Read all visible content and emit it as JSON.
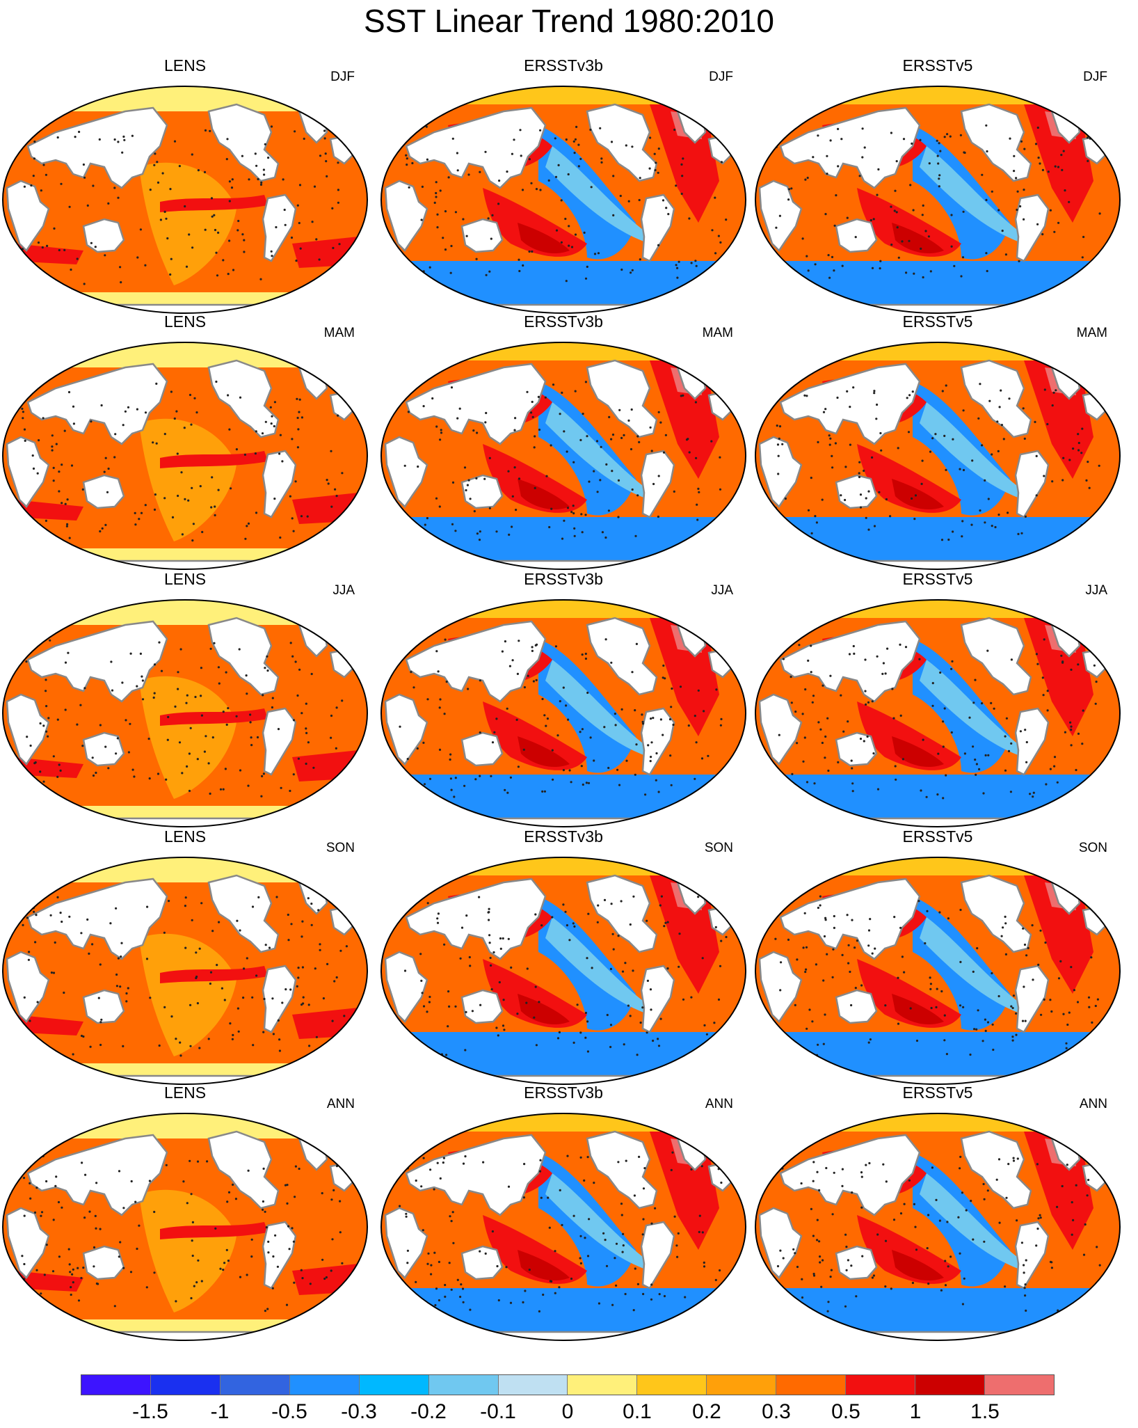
{
  "title": "SST Linear Trend 1980:2010",
  "columns": [
    "LENS",
    "ERSSTv3b",
    "ERSSTv5"
  ],
  "seasons": [
    "DJF",
    "MAM",
    "JJA",
    "SON",
    "ANN"
  ],
  "panels": [
    {
      "model": "LENS",
      "season": "DJF",
      "pattern": "lens"
    },
    {
      "model": "ERSSTv3b",
      "season": "DJF",
      "pattern": "obs"
    },
    {
      "model": "ERSSTv5",
      "season": "DJF",
      "pattern": "obs"
    },
    {
      "model": "LENS",
      "season": "MAM",
      "pattern": "lens"
    },
    {
      "model": "ERSSTv3b",
      "season": "MAM",
      "pattern": "obs"
    },
    {
      "model": "ERSSTv5",
      "season": "MAM",
      "pattern": "obs"
    },
    {
      "model": "LENS",
      "season": "JJA",
      "pattern": "lens"
    },
    {
      "model": "ERSSTv3b",
      "season": "JJA",
      "pattern": "obs"
    },
    {
      "model": "ERSSTv5",
      "season": "JJA",
      "pattern": "obs"
    },
    {
      "model": "LENS",
      "season": "SON",
      "pattern": "lens"
    },
    {
      "model": "ERSSTv3b",
      "season": "SON",
      "pattern": "obs"
    },
    {
      "model": "ERSSTv5",
      "season": "SON",
      "pattern": "obs"
    },
    {
      "model": "LENS",
      "season": "ANN",
      "pattern": "lens"
    },
    {
      "model": "ERSSTv3b",
      "season": "ANN",
      "pattern": "obs"
    },
    {
      "model": "ERSSTv5",
      "season": "ANN",
      "pattern": "obs"
    }
  ],
  "colorbar": {
    "colors": [
      "#3d14ff",
      "#1a30f0",
      "#3264e0",
      "#2090ff",
      "#00b8ff",
      "#70c8f0",
      "#bfe0f2",
      "#fff07a",
      "#ffc61a",
      "#ffa00a",
      "#ff6a00",
      "#f21010",
      "#cc0000",
      "#ee6e6e"
    ],
    "labels": [
      "-1.5",
      "-1",
      "-0.5",
      "-0.3",
      "-0.2",
      "-0.1",
      "0",
      "0.1",
      "0.2",
      "0.3",
      "0.5",
      "1",
      "1.5"
    ]
  },
  "palette": {
    "land": "#ffffff",
    "coast": "#888888",
    "lens_base": "#ff6a00",
    "lens_light": "#ffa00a",
    "lens_yellow": "#fff07a",
    "lens_red": "#f21010",
    "obs_red": "#f21010",
    "obs_darkred": "#cc0000",
    "obs_blue": "#2090ff",
    "obs_lightblue": "#70c8f0",
    "obs_orange": "#ff6a00",
    "obs_yellow": "#ffc61a",
    "obs_pink": "#ee6e6e"
  }
}
